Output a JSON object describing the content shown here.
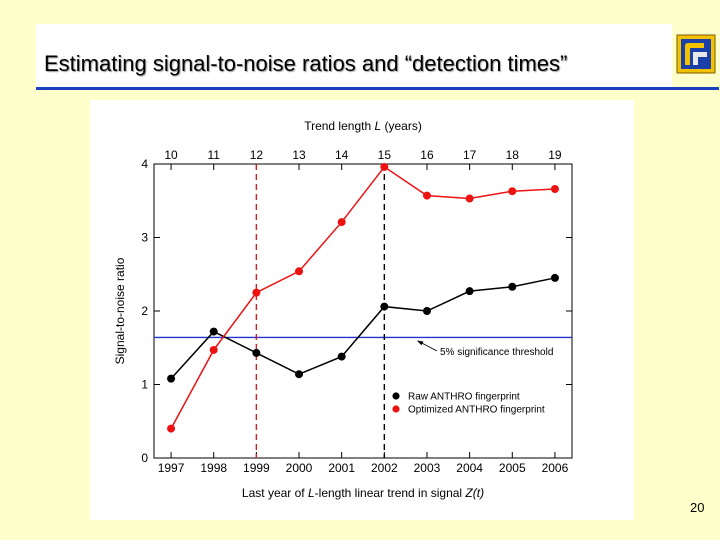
{
  "slide": {
    "title": "Estimating signal-to-noise ratios and “detection times”",
    "page_number": "20",
    "accent_color": "#1a3fbf",
    "logo_icon": "llnl-logo-icon"
  },
  "chart_data": {
    "type": "line",
    "title": "",
    "xlabel_prefix": "Last year of ",
    "xlabel_italic": "L",
    "xlabel_mid": "-length linear trend in signal ",
    "xlabel_italic2": "Z(t)",
    "ylabel": "Signal-to-noise ratio",
    "top_axis_label_prefix": "Trend length ",
    "top_axis_label_italic": "L",
    "top_axis_label_suffix": " (years)",
    "x": [
      1997,
      1998,
      1999,
      2000,
      2001,
      2002,
      2003,
      2004,
      2005,
      2006
    ],
    "x_tick_labels": [
      "1997",
      "1998",
      "1999",
      "2000",
      "2001",
      "2002",
      "2003",
      "2004",
      "2005",
      "2006"
    ],
    "top_tick_labels": [
      "10",
      "11",
      "12",
      "13",
      "14",
      "15",
      "16",
      "17",
      "18",
      "19"
    ],
    "xlim": [
      1996.6,
      2006.4
    ],
    "ylim": [
      0,
      4
    ],
    "y_ticks": [
      0,
      1,
      2,
      3,
      4
    ],
    "y_tick_labels": [
      "0",
      "1",
      "2",
      "3",
      "4"
    ],
    "series": [
      {
        "name": "Raw ANTHRO fingerprint",
        "color": "#000000",
        "values": [
          1.08,
          1.72,
          1.43,
          1.14,
          1.38,
          2.06,
          2.0,
          2.27,
          2.33,
          2.45
        ]
      },
      {
        "name": "Optimized ANTHRO fingerprint",
        "color": "#ee1111",
        "values": [
          0.4,
          1.47,
          2.25,
          2.54,
          3.21,
          3.96,
          3.57,
          3.53,
          3.63,
          3.66
        ]
      }
    ],
    "threshold": {
      "value": 1.64,
      "label": "5% significance threshold",
      "color": "#2233cc"
    },
    "vertical_markers": [
      {
        "x": 1999,
        "color": "#cc2222"
      },
      {
        "x": 2002,
        "color": "#000000"
      }
    ],
    "legend_position": "lower-right"
  }
}
